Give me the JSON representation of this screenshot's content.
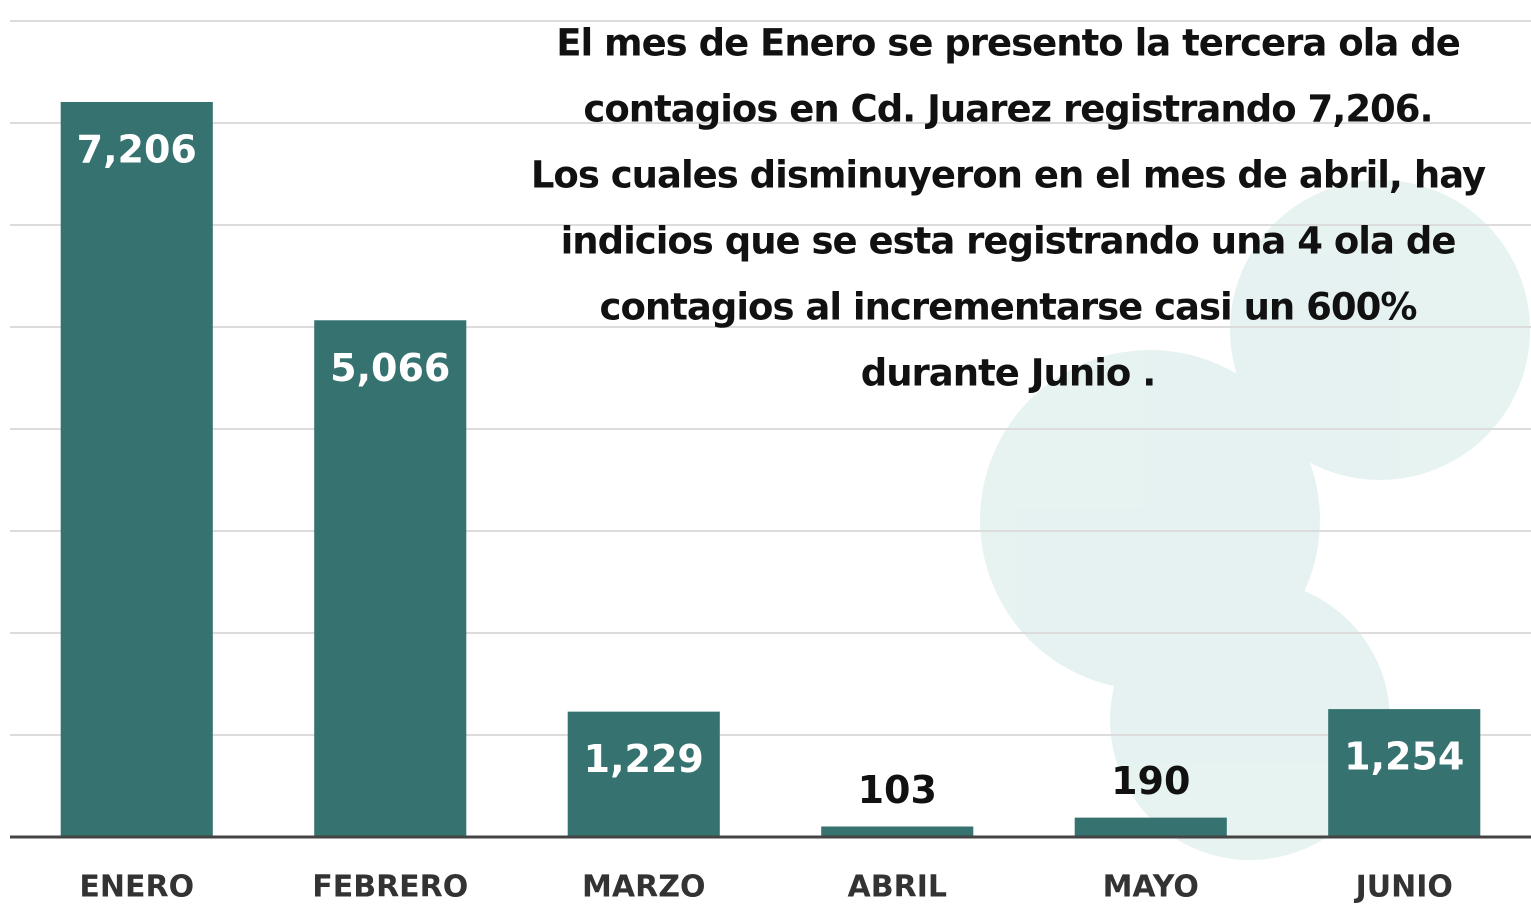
{
  "chart_data": {
    "type": "bar",
    "categories": [
      "ENERO",
      "FEBRERO",
      "MARZO",
      "ABRIL",
      "MAYO",
      "JUNIO"
    ],
    "values": [
      7206,
      5066,
      1229,
      103,
      190,
      1254
    ],
    "value_labels": [
      "7,206",
      "5,066",
      "1,229",
      "103",
      "190",
      "1,254"
    ],
    "color": "#367370",
    "ylim": [
      0,
      8000
    ],
    "yticks": [
      0,
      1000,
      2000,
      3000,
      4000,
      5000,
      6000,
      7000,
      8000
    ],
    "grid": true,
    "annotation": [
      "El mes de Enero se presento la tercera ola de",
      "contagios en Cd. Juarez registrando 7,206.",
      "Los cuales disminuyeron en el mes de abril, hay",
      "indicios que se esta registrando una 4 ola de",
      "contagios al incrementarse  casi un 600%",
      "durante Junio ."
    ]
  }
}
